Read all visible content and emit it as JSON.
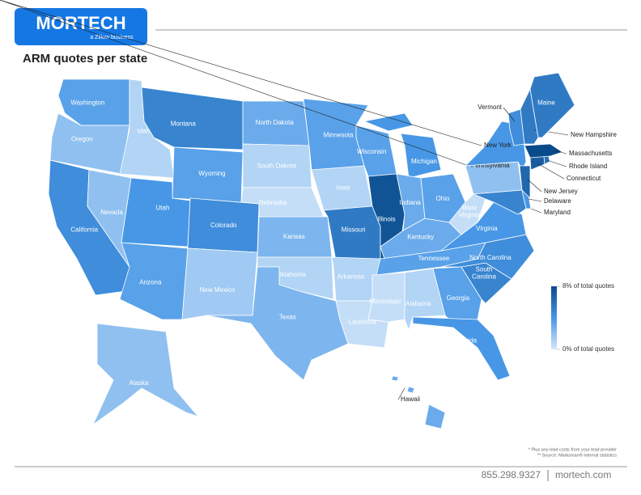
{
  "brand": {
    "name": "MORTECH",
    "tagline": "a Zillow business"
  },
  "chart_data": {
    "type": "choropleth",
    "title": "ARM quotes per state",
    "states": [
      {
        "name": "Washington",
        "value": 3.5
      },
      {
        "name": "Oregon",
        "value": 2
      },
      {
        "name": "California",
        "value": 4.5
      },
      {
        "name": "Nevada",
        "value": 2
      },
      {
        "name": "Idaho",
        "value": 1
      },
      {
        "name": "Montana",
        "value": 5
      },
      {
        "name": "Wyoming",
        "value": 3.5
      },
      {
        "name": "Utah",
        "value": 4
      },
      {
        "name": "Colorado",
        "value": 4.5
      },
      {
        "name": "Arizona",
        "value": 3.5
      },
      {
        "name": "New Mexico",
        "value": 1.5
      },
      {
        "name": "North Dakota",
        "value": 3
      },
      {
        "name": "South Dakota",
        "value": 1
      },
      {
        "name": "Nebraska",
        "value": 0.5
      },
      {
        "name": "Kansas",
        "value": 2.5
      },
      {
        "name": "Oklahoma",
        "value": 1
      },
      {
        "name": "Texas",
        "value": 2.5
      },
      {
        "name": "Minnesota",
        "value": 3.5
      },
      {
        "name": "Iowa",
        "value": 1
      },
      {
        "name": "Missouri",
        "value": 5.5
      },
      {
        "name": "Arkansas",
        "value": 1
      },
      {
        "name": "Louisiana",
        "value": 0.5
      },
      {
        "name": "Wisconsin",
        "value": 3.5
      },
      {
        "name": "Illinois",
        "value": 7.5
      },
      {
        "name": "Michigan",
        "value": 4
      },
      {
        "name": "Indiana",
        "value": 3
      },
      {
        "name": "Ohio",
        "value": 3.5
      },
      {
        "name": "Kentucky",
        "value": 3
      },
      {
        "name": "Tennessee",
        "value": 3.5
      },
      {
        "name": "Mississippi",
        "value": 0.5
      },
      {
        "name": "Alabama",
        "value": 1
      },
      {
        "name": "Georgia",
        "value": 3.5
      },
      {
        "name": "Florida",
        "value": 4
      },
      {
        "name": "South\nCarolina",
        "value": 5
      },
      {
        "name": "North Carolina",
        "value": 4.5
      },
      {
        "name": "Virginia",
        "value": 4
      },
      {
        "name": "West\nVirginia",
        "value": 0.5
      },
      {
        "name": "Pennsylvania",
        "value": 2
      },
      {
        "name": "New York",
        "value": 4
      },
      {
        "name": "Maryland",
        "value": 5
      },
      {
        "name": "Delaware",
        "value": 4
      },
      {
        "name": "New Jersey",
        "value": 6.5
      },
      {
        "name": "Connecticut",
        "value": 7
      },
      {
        "name": "Rhode Island",
        "value": 6
      },
      {
        "name": "Massachusetts",
        "value": 8
      },
      {
        "name": "Vermont",
        "value": 4.5
      },
      {
        "name": "New Hampshire",
        "value": 5.5
      },
      {
        "name": "Maine",
        "value": 5.5
      },
      {
        "name": "Alaska",
        "value": 2
      },
      {
        "name": "Hawaii",
        "value": 3
      }
    ],
    "colors": [
      "#d6e8fa",
      "#4797e6",
      "#094a8a"
    ],
    "legend": {
      "range": [
        0,
        8
      ],
      "ticks": [
        {
          "value": 8,
          "label": "8% of total quotes"
        },
        {
          "value": 0,
          "label": "0% of total quotes"
        }
      ]
    }
  },
  "footnotes": [
    "* Plus any lead costs from your lead provider",
    "** Source: Marksman® internal statistics"
  ],
  "footer": {
    "phone": "855.298.9327",
    "site": "mortech.com"
  }
}
